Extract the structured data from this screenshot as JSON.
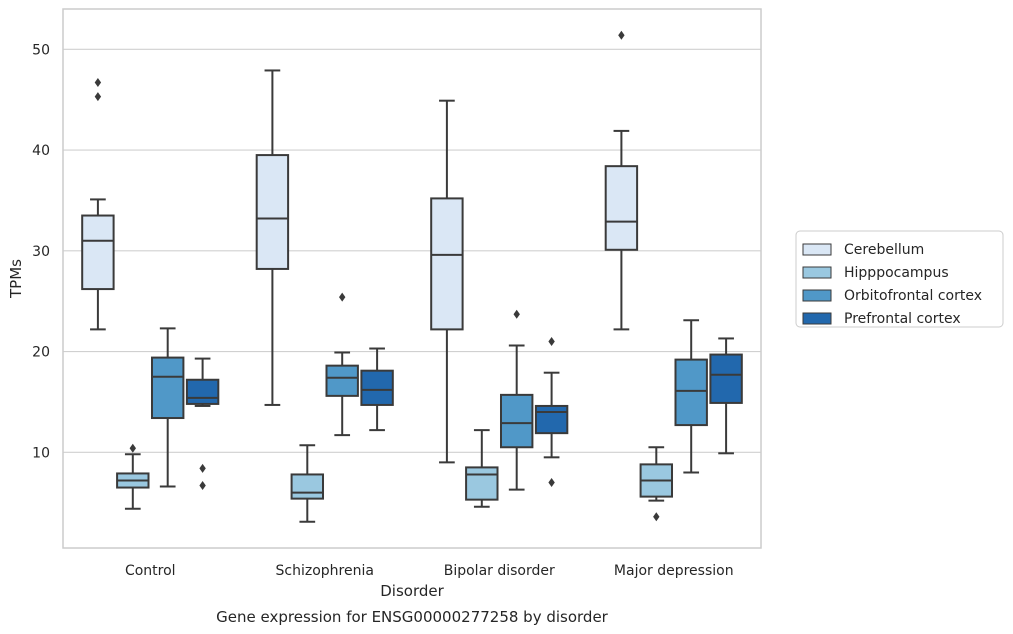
{
  "chart_data": {
    "type": "box",
    "title": "Gene expression for ENSG00000277258 by disorder",
    "xlabel": "Disorder",
    "ylabel": "TPMs",
    "ylim": [
      0.5,
      54
    ],
    "yticks": [
      10,
      20,
      30,
      40,
      50
    ],
    "grid": "horizontal",
    "legend_position": "right",
    "categories": [
      "Control",
      "Schizophrenia",
      "Bipolar disorder",
      "Major depression"
    ],
    "series": [
      {
        "name": "Cerebellum",
        "color": "#dae7f5",
        "boxes": [
          {
            "whislo": 22.2,
            "q1": 26.2,
            "med": 31.0,
            "q3": 33.5,
            "whishi": 35.1,
            "fliers": [
              45.3,
              46.7
            ]
          },
          {
            "whislo": 14.7,
            "q1": 28.2,
            "med": 33.2,
            "q3": 39.5,
            "whishi": 47.9,
            "fliers": []
          },
          {
            "whislo": 9.0,
            "q1": 22.2,
            "med": 29.6,
            "q3": 35.2,
            "whishi": 44.9,
            "fliers": []
          },
          {
            "whislo": 22.2,
            "q1": 30.1,
            "med": 32.9,
            "q3": 38.4,
            "whishi": 41.9,
            "fliers": [
              51.4
            ]
          }
        ]
      },
      {
        "name": "Hipppocampus",
        "color": "#9ac8e0",
        "boxes": [
          {
            "whislo": 4.4,
            "q1": 6.5,
            "med": 7.2,
            "q3": 7.9,
            "whishi": 9.8,
            "fliers": [
              10.4
            ]
          },
          {
            "whislo": 3.1,
            "q1": 5.4,
            "med": 6.0,
            "q3": 7.8,
            "whishi": 10.7,
            "fliers": []
          },
          {
            "whislo": 4.6,
            "q1": 5.3,
            "med": 7.8,
            "q3": 8.5,
            "whishi": 12.2,
            "fliers": []
          },
          {
            "whislo": 5.2,
            "q1": 5.6,
            "med": 7.2,
            "q3": 8.8,
            "whishi": 10.5,
            "fliers": [
              3.6
            ]
          }
        ]
      },
      {
        "name": "Orbitofrontal cortex",
        "color": "#5098c8",
        "boxes": [
          {
            "whislo": 6.6,
            "q1": 13.4,
            "med": 17.5,
            "q3": 19.4,
            "whishi": 22.3,
            "fliers": []
          },
          {
            "whislo": 11.7,
            "q1": 15.6,
            "med": 17.4,
            "q3": 18.6,
            "whishi": 19.9,
            "fliers": [
              25.4
            ]
          },
          {
            "whislo": 6.3,
            "q1": 10.5,
            "med": 12.9,
            "q3": 15.7,
            "whishi": 20.6,
            "fliers": [
              23.7
            ]
          },
          {
            "whislo": 8.0,
            "q1": 12.7,
            "med": 16.1,
            "q3": 19.2,
            "whishi": 23.1,
            "fliers": []
          }
        ]
      },
      {
        "name": "Prefrontal cortex",
        "color": "#2268ad",
        "boxes": [
          {
            "whislo": 14.6,
            "q1": 14.8,
            "med": 15.4,
            "q3": 17.2,
            "whishi": 19.3,
            "fliers": [
              8.4,
              6.7
            ]
          },
          {
            "whislo": 12.2,
            "q1": 14.7,
            "med": 16.2,
            "q3": 18.1,
            "whishi": 20.3,
            "fliers": []
          },
          {
            "whislo": 9.5,
            "q1": 11.9,
            "med": 14.0,
            "q3": 14.6,
            "whishi": 17.9,
            "fliers": [
              21.0,
              7.0
            ]
          },
          {
            "whislo": 9.9,
            "q1": 14.9,
            "med": 17.7,
            "q3": 19.7,
            "whishi": 21.3,
            "fliers": []
          }
        ]
      }
    ]
  }
}
